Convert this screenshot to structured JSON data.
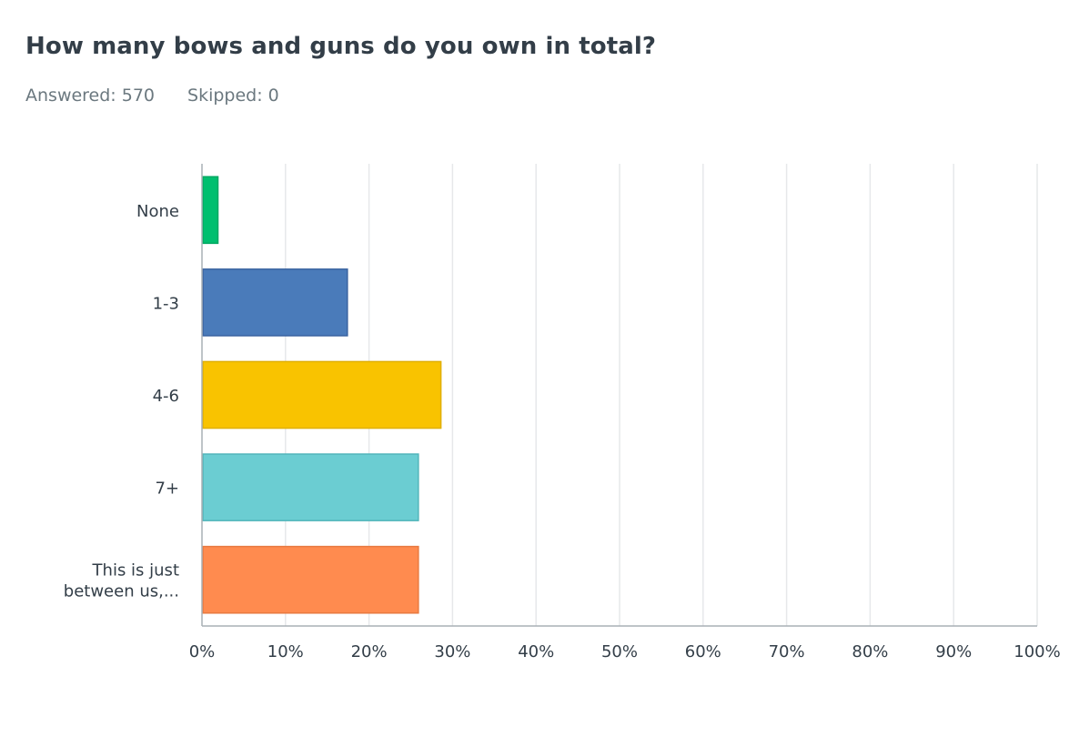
{
  "question": {
    "title": "How many bows and guns do you own in total?",
    "answered_label": "Answered: 570",
    "skipped_label": "Skipped: 0"
  },
  "chart_data": {
    "type": "bar",
    "orientation": "horizontal",
    "categories": [
      [
        "None"
      ],
      [
        "1-3"
      ],
      [
        "4-6"
      ],
      [
        "7+"
      ],
      [
        "This is just",
        "between us,..."
      ]
    ],
    "values": [
      1.8,
      17.3,
      28.5,
      25.8,
      25.8
    ],
    "colors": [
      "#00bf6f",
      "#4a7bba",
      "#f9c300",
      "#6bcdd2",
      "#ff8b4f"
    ],
    "border_colors": [
      "#00a861",
      "#3a63a0",
      "#e0af00",
      "#52b5ba",
      "#e87a41"
    ],
    "xlim": [
      0,
      100
    ],
    "xticks": [
      "0%",
      "10%",
      "20%",
      "30%",
      "40%",
      "50%",
      "60%",
      "70%",
      "80%",
      "90%",
      "100%"
    ],
    "grid": true,
    "xlabel": "",
    "ylabel": ""
  }
}
